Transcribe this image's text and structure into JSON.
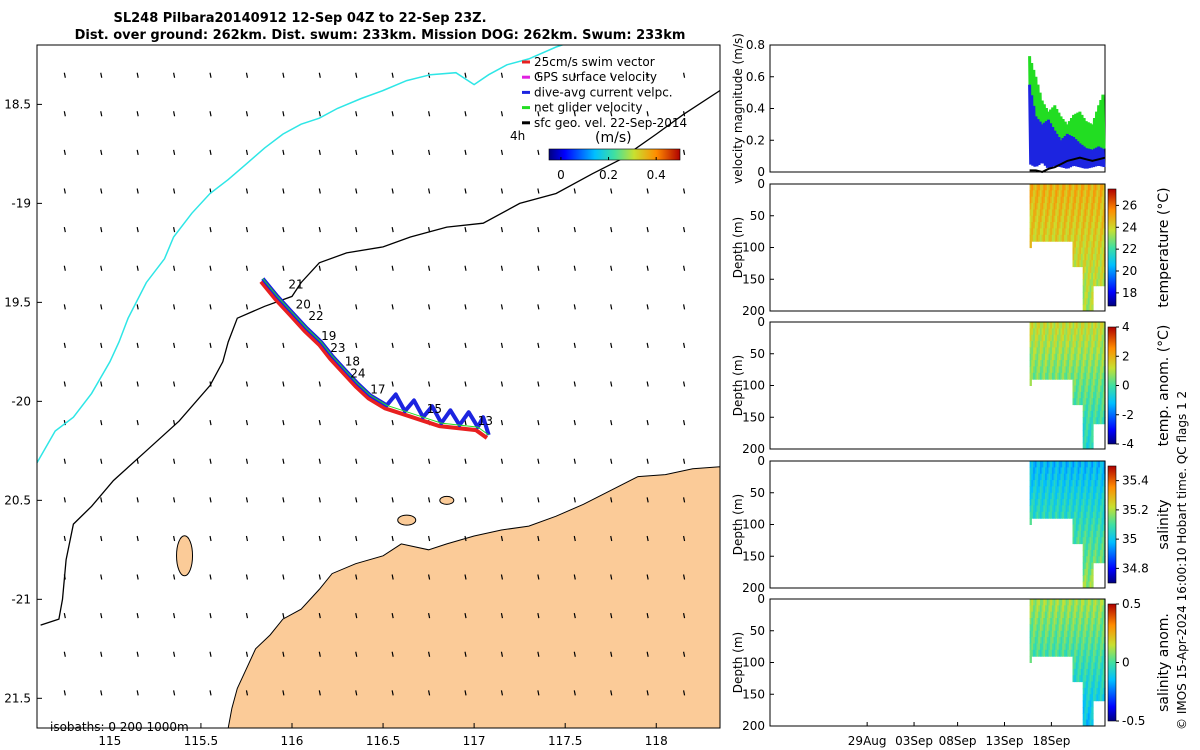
{
  "title": {
    "line1": "SL248 Pilbara20140912 12-Sep 04Z to 22-Sep 23Z.",
    "line2": "Dist. over ground: 262km. Dist. swum: 233km. Mission DOG: 262km. Swum: 233km"
  },
  "colors": {
    "land": "#fbcb98",
    "coast": "#000000",
    "isobath200": "#000000",
    "isobath1000": "#2ee6e6",
    "surface_track_red": "#e82020",
    "dive_avg_blue": "#1c24e0",
    "net_velocity_green": "#22dd22",
    "sfc_geo_black": "#000000"
  },
  "chart_data": [
    {
      "type": "map",
      "name": "track-map",
      "xlim": [
        114.6,
        118.35
      ],
      "ylim": [
        -21.65,
        -18.2
      ],
      "xticks": [
        115,
        115.5,
        116,
        116.5,
        117,
        117.5,
        118
      ],
      "xtick_labels": [
        "115",
        "115.5",
        "116",
        "116.5",
        "117",
        "117.5",
        "118"
      ],
      "yticks": [
        -18.5,
        -19,
        -19.5,
        -20,
        -20.5,
        -21,
        -21.5
      ],
      "ytick_labels": [
        "18.5",
        "-19",
        "19.5",
        "-20",
        "20.5",
        "-21",
        "21.5"
      ],
      "legend": {
        "placement": "top-right",
        "items": [
          {
            "label": "25cm/s swim vector",
            "color": "#e82020"
          },
          {
            "label": "GPS surface velocity",
            "color": "#e020e0"
          },
          {
            "label": "dive-avg current velpc.",
            "color": "#1c24e0"
          },
          {
            "label": "net glider velocity",
            "color": "#22dd22"
          },
          {
            "label": "sfc geo. vel. 22-Sep-2014",
            "color": "#000000"
          }
        ]
      },
      "colorbar": {
        "label": "(m/s)",
        "extra_label": "4h",
        "range": [
          -0.05,
          0.5
        ],
        "ticks": [
          0,
          0.2,
          0.4
        ],
        "tick_labels": [
          "0",
          "0.2",
          "0.4"
        ]
      },
      "isobaths_label": "isobaths: 0   200 1000m",
      "glider_track": [
        [
          115.84,
          -19.38
        ],
        [
          115.92,
          -19.47
        ],
        [
          116.0,
          -19.55
        ],
        [
          116.08,
          -19.63
        ],
        [
          116.16,
          -19.7
        ],
        [
          116.22,
          -19.77
        ],
        [
          116.3,
          -19.85
        ],
        [
          116.36,
          -19.91
        ],
        [
          116.43,
          -19.97
        ],
        [
          116.52,
          -20.02
        ],
        [
          116.62,
          -20.05
        ],
        [
          116.72,
          -20.08
        ],
        [
          116.82,
          -20.11
        ],
        [
          116.92,
          -20.12
        ],
        [
          117.02,
          -20.13
        ],
        [
          117.08,
          -20.17
        ]
      ],
      "day_labels": [
        {
          "text": "21",
          "lon": 115.98,
          "lat": -19.43
        },
        {
          "text": "20",
          "lon": 116.02,
          "lat": -19.53
        },
        {
          "text": "22",
          "lon": 116.09,
          "lat": -19.59
        },
        {
          "text": "19",
          "lon": 116.16,
          "lat": -19.69
        },
        {
          "text": "23",
          "lon": 116.21,
          "lat": -19.75
        },
        {
          "text": "18",
          "lon": 116.29,
          "lat": -19.82
        },
        {
          "text": "24",
          "lon": 116.32,
          "lat": -19.88
        },
        {
          "text": "17",
          "lon": 116.43,
          "lat": -19.96
        },
        {
          "text": "15",
          "lon": 116.74,
          "lat": -20.06
        },
        {
          "text": "13",
          "lon": 117.02,
          "lat": -20.12
        }
      ],
      "isobath_200m": [
        [
          114.62,
          -21.13
        ],
        [
          114.72,
          -21.1
        ],
        [
          114.74,
          -21.0
        ],
        [
          114.76,
          -20.8
        ],
        [
          114.8,
          -20.62
        ],
        [
          114.9,
          -20.53
        ],
        [
          115.02,
          -20.4
        ],
        [
          115.2,
          -20.25
        ],
        [
          115.38,
          -20.1
        ],
        [
          115.55,
          -19.92
        ],
        [
          115.62,
          -19.8
        ],
        [
          115.65,
          -19.7
        ],
        [
          115.7,
          -19.58
        ],
        [
          115.85,
          -19.52
        ],
        [
          116.0,
          -19.47
        ],
        [
          116.05,
          -19.4
        ],
        [
          116.15,
          -19.3
        ],
        [
          116.3,
          -19.25
        ],
        [
          116.5,
          -19.22
        ],
        [
          116.65,
          -19.17
        ],
        [
          116.85,
          -19.12
        ],
        [
          117.05,
          -19.1
        ],
        [
          117.25,
          -19.0
        ],
        [
          117.45,
          -18.95
        ],
        [
          117.65,
          -18.85
        ],
        [
          117.8,
          -18.78
        ],
        [
          118.0,
          -18.65
        ],
        [
          118.15,
          -18.55
        ],
        [
          118.35,
          -18.43
        ]
      ],
      "isobath_1000m": [
        [
          114.6,
          -20.31
        ],
        [
          114.7,
          -20.15
        ],
        [
          114.8,
          -20.08
        ],
        [
          114.9,
          -19.96
        ],
        [
          115.0,
          -19.8
        ],
        [
          115.05,
          -19.7
        ],
        [
          115.1,
          -19.58
        ],
        [
          115.2,
          -19.4
        ],
        [
          115.3,
          -19.28
        ],
        [
          115.35,
          -19.17
        ],
        [
          115.45,
          -19.05
        ],
        [
          115.55,
          -18.95
        ],
        [
          115.65,
          -18.88
        ],
        [
          115.75,
          -18.8
        ],
        [
          115.85,
          -18.72
        ],
        [
          115.95,
          -18.65
        ],
        [
          116.05,
          -18.6
        ],
        [
          116.15,
          -18.57
        ],
        [
          116.25,
          -18.52
        ],
        [
          116.38,
          -18.47
        ],
        [
          116.5,
          -18.43
        ],
        [
          116.63,
          -18.38
        ],
        [
          116.76,
          -18.35
        ],
        [
          116.9,
          -18.34
        ],
        [
          117.0,
          -18.4
        ],
        [
          117.08,
          -18.35
        ],
        [
          117.18,
          -18.3
        ],
        [
          117.3,
          -18.27
        ],
        [
          117.45,
          -18.21
        ],
        [
          117.55,
          -18.18
        ]
      ],
      "coastline": [
        [
          115.65,
          -21.65
        ],
        [
          115.67,
          -21.55
        ],
        [
          115.7,
          -21.45
        ],
        [
          115.75,
          -21.35
        ],
        [
          115.8,
          -21.25
        ],
        [
          115.88,
          -21.18
        ],
        [
          115.95,
          -21.1
        ],
        [
          116.05,
          -21.05
        ],
        [
          116.15,
          -20.95
        ],
        [
          116.22,
          -20.87
        ],
        [
          116.35,
          -20.82
        ],
        [
          116.5,
          -20.78
        ],
        [
          116.6,
          -20.72
        ],
        [
          116.75,
          -20.75
        ],
        [
          116.85,
          -20.72
        ],
        [
          117.0,
          -20.68
        ],
        [
          117.15,
          -20.65
        ],
        [
          117.3,
          -20.63
        ],
        [
          117.45,
          -20.58
        ],
        [
          117.6,
          -20.52
        ],
        [
          117.75,
          -20.45
        ],
        [
          117.9,
          -20.38
        ],
        [
          118.05,
          -20.37
        ],
        [
          118.2,
          -20.34
        ],
        [
          118.35,
          -20.33
        ]
      ]
    },
    {
      "type": "line",
      "name": "velocity-magnitude",
      "ylabel": "velocity magnitude (m/s)",
      "xlim": [
        0,
        100
      ],
      "ylim": [
        0,
        0.8
      ],
      "yticks": [
        0,
        0.2,
        0.4,
        0.6,
        0.8
      ],
      "ytick_labels": [
        "0",
        "0.2",
        "0.4",
        "0.6",
        "0.8"
      ],
      "start": 77.5,
      "end": 100,
      "series": [
        {
          "name": "net glider velocity",
          "color": "#22dd22",
          "envelope_high": [
            0.73,
            0.6,
            0.45,
            0.38,
            0.42,
            0.35,
            0.3,
            0.36,
            0.38,
            0.32,
            0.3,
            0.42,
            0.52
          ],
          "envelope_low": [
            0.2,
            0.15,
            0.22,
            0.12,
            0.18,
            0.1,
            0.14,
            0.15,
            0.12,
            0.1,
            0.12,
            0.14,
            0.15
          ]
        },
        {
          "name": "dive-avg current velpc.",
          "color": "#1c24e0",
          "envelope_high": [
            0.55,
            0.35,
            0.3,
            0.33,
            0.26,
            0.2,
            0.24,
            0.22,
            0.18,
            0.15,
            0.14,
            0.16,
            0.14
          ],
          "envelope_low": [
            0.05,
            0.03,
            0.06,
            0.02,
            0.04,
            0.03,
            0.02,
            0.04,
            0.03,
            0.02,
            0.03,
            0.04,
            0.03
          ]
        },
        {
          "name": "sfc geo. vel. 22-Sep-2014",
          "color": "#000000",
          "values": [
            0.01,
            0.01,
            0.0,
            0.02,
            0.03,
            0.05,
            0.07,
            0.08,
            0.09,
            0.08,
            0.07,
            0.08,
            0.09
          ]
        }
      ]
    },
    {
      "type": "heatmap",
      "name": "temperature",
      "ylabel": "Depth (m)",
      "colorbar_label": "temperature (°C)",
      "ylim": [
        0,
        200
      ],
      "yticks": [
        0,
        50,
        100,
        150,
        200
      ],
      "colorbar_range": [
        16.8,
        27.5
      ],
      "colorbar_ticks": [
        18,
        20,
        22,
        24,
        26
      ],
      "colorbar_tick_labels": [
        "18",
        "20",
        "22",
        "24",
        "26"
      ],
      "profile_x": [
        77.5,
        80,
        83,
        86,
        89,
        92,
        95,
        98,
        100
      ],
      "surface_value": 24.8,
      "deep_value": 23.2
    },
    {
      "type": "heatmap",
      "name": "temperature-anomaly",
      "ylabel": "Depth (m)",
      "colorbar_label": "temp. anom. (°C)",
      "ylim": [
        0,
        200
      ],
      "yticks": [
        0,
        50,
        100,
        150,
        200
      ],
      "colorbar_range": [
        -4,
        4
      ],
      "colorbar_ticks": [
        -4,
        -2,
        0,
        2,
        4
      ],
      "colorbar_tick_labels": [
        "-4",
        "-2",
        "0",
        "2",
        "4"
      ],
      "surface_value": 1.2,
      "deep_value": -0.6
    },
    {
      "type": "heatmap",
      "name": "salinity",
      "ylabel": "Depth (m)",
      "colorbar_label": "salinity",
      "ylim": [
        0,
        200
      ],
      "yticks": [
        0,
        50,
        100,
        150,
        200
      ],
      "colorbar_range": [
        34.7,
        35.5
      ],
      "colorbar_ticks": [
        34.8,
        35,
        35.2,
        35.4
      ],
      "colorbar_tick_labels": [
        "34.8",
        "35",
        "35.2",
        "35.4"
      ],
      "surface_value": 34.98,
      "deep_value": 35.18
    },
    {
      "type": "heatmap",
      "name": "salinity-anomaly",
      "ylabel": "Depth (m)",
      "colorbar_label": "salinity anom.",
      "ylim": [
        0,
        200
      ],
      "yticks": [
        0,
        50,
        100,
        150,
        200
      ],
      "colorbar_range": [
        -0.5,
        0.5
      ],
      "colorbar_ticks": [
        -0.5,
        0,
        0.5
      ],
      "colorbar_tick_labels": [
        "-0.5",
        "0",
        "0.5"
      ],
      "surface_value": 0.1,
      "deep_value": -0.15,
      "xticks": [
        29,
        43,
        56,
        70,
        84
      ],
      "xtick_labels": [
        "29Aug",
        "03Sep",
        "08Sep",
        "13Sep",
        "18Sep"
      ]
    }
  ],
  "side_note": "© IMOS 15-Apr-2024 16:00:10 Hobart time. QC flags 1  2"
}
